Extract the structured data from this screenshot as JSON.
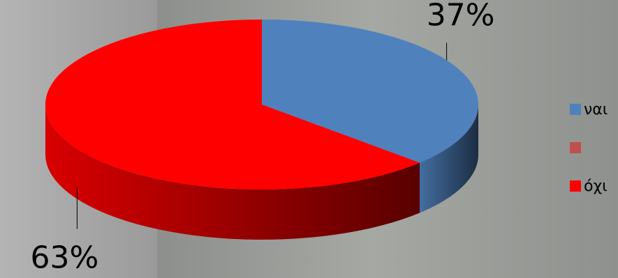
{
  "chart_data": {
    "type": "pie",
    "categories": [
      "ναι",
      null,
      "όχι"
    ],
    "values": [
      37,
      null,
      63
    ],
    "value_labels": [
      "37%",
      null,
      "63%"
    ],
    "colors": [
      "#4f81bd",
      "#c0504d",
      "#ff0000"
    ]
  }
}
